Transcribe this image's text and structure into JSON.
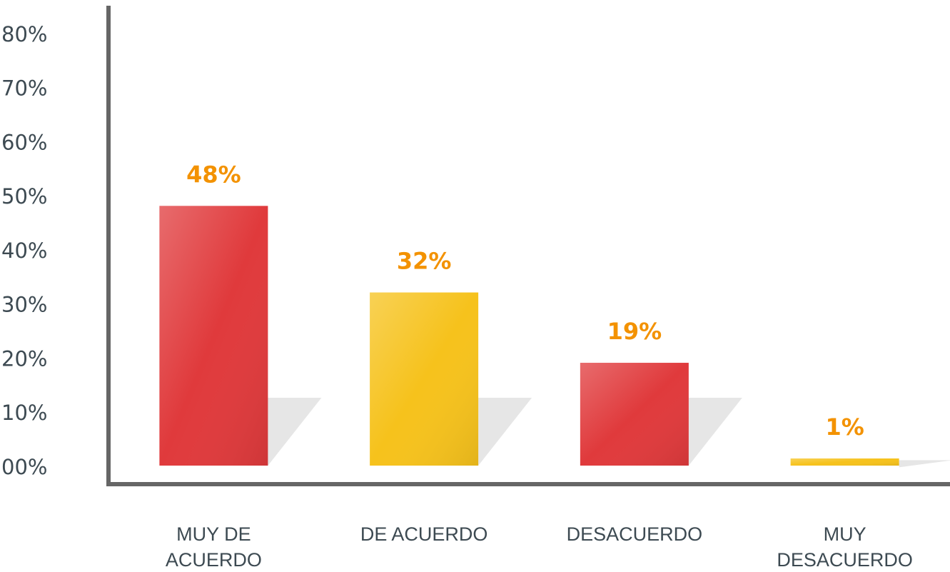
{
  "chart_data": {
    "type": "bar",
    "categories": [
      "MUY DE ACUERDO",
      "DE ACUERDO",
      "DESACUERDO",
      "MUY DESACUERDO"
    ],
    "values": [
      48,
      32,
      19,
      1
    ],
    "value_labels": [
      "48%",
      "32%",
      "19%",
      "1%"
    ],
    "colors": [
      "#e03a3c",
      "#f6c21c",
      "#e03a3c",
      "#f6c21c"
    ],
    "ylim": [
      0,
      85
    ],
    "yticks": [
      {
        "value": 0,
        "label": "00%"
      },
      {
        "value": 10,
        "label": "10%"
      },
      {
        "value": 20,
        "label": "20%"
      },
      {
        "value": 30,
        "label": "30%"
      },
      {
        "value": 40,
        "label": "40%"
      },
      {
        "value": 50,
        "label": "50%"
      },
      {
        "value": 60,
        "label": "60%"
      },
      {
        "value": 70,
        "label": "70%"
      },
      {
        "value": 80,
        "label": "80%"
      }
    ]
  }
}
